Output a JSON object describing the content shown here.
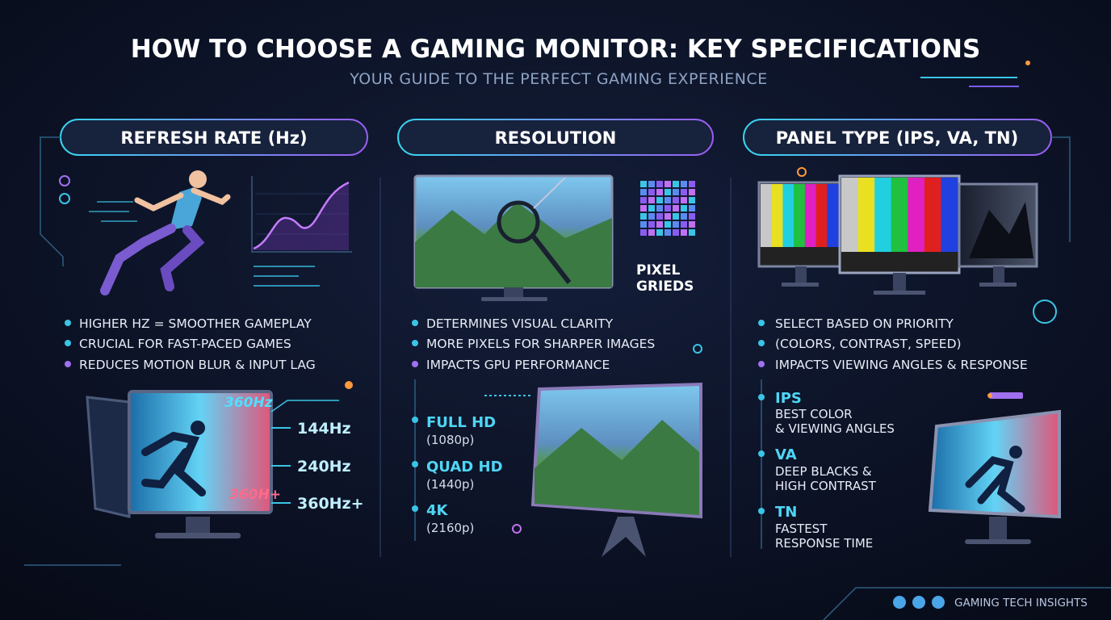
{
  "header": {
    "title": "HOW TO CHOOSE A GAMING MONITOR: KEY SPECIFICATIONS",
    "subtitle": "YOUR GUIDE TO THE PERFECT GAMING EXPERIENCE"
  },
  "columns": [
    {
      "heading": "REFRESH RATE (Hz)",
      "bullets": [
        "HIGHER HZ = SMOOTHER GAMEPLAY",
        "CRUCIAL FOR FAST-PACED GAMES",
        "REDUCES MOTION BLUR & INPUT LAG"
      ],
      "screen_labels": [
        "360Hz",
        "360H+"
      ],
      "rates": [
        "144Hz",
        "240Hz",
        "360Hz+"
      ]
    },
    {
      "heading": "RESOLUTION",
      "grid_label": [
        "PIXEL",
        "GRIEDS"
      ],
      "bullets": [
        "DETERMINES VISUAL CLARITY",
        "MORE PIXELS FOR SHARPER IMAGES",
        "IMPACTS GPU PERFORMANCE"
      ],
      "resolutions": [
        {
          "name": "FULL HD",
          "detail": "(1080p)"
        },
        {
          "name": "QUAD HD",
          "detail": "(1440p)"
        },
        {
          "name": "4K",
          "detail": "(2160p)"
        }
      ]
    },
    {
      "heading": "PANEL TYPE (IPS, VA, TN)",
      "bullets": [
        "SELECT BASED ON PRIORITY",
        "(COLORS, CONTRAST, SPEED)",
        "IMPACTS VIEWING ANGLES & RESPONSE"
      ],
      "types": [
        {
          "name": "IPS",
          "lines": [
            "BEST COLOR",
            "& VIEWING ANGLES"
          ]
        },
        {
          "name": "VA",
          "lines": [
            "DEEP BLACKS &",
            "HIGH CONTRAST"
          ]
        },
        {
          "name": "TN",
          "lines": [
            "FASTEST",
            "RESPONSE TIME"
          ]
        }
      ]
    }
  ],
  "footer": {
    "brand": "GAMING TECH INSIGHTS"
  }
}
